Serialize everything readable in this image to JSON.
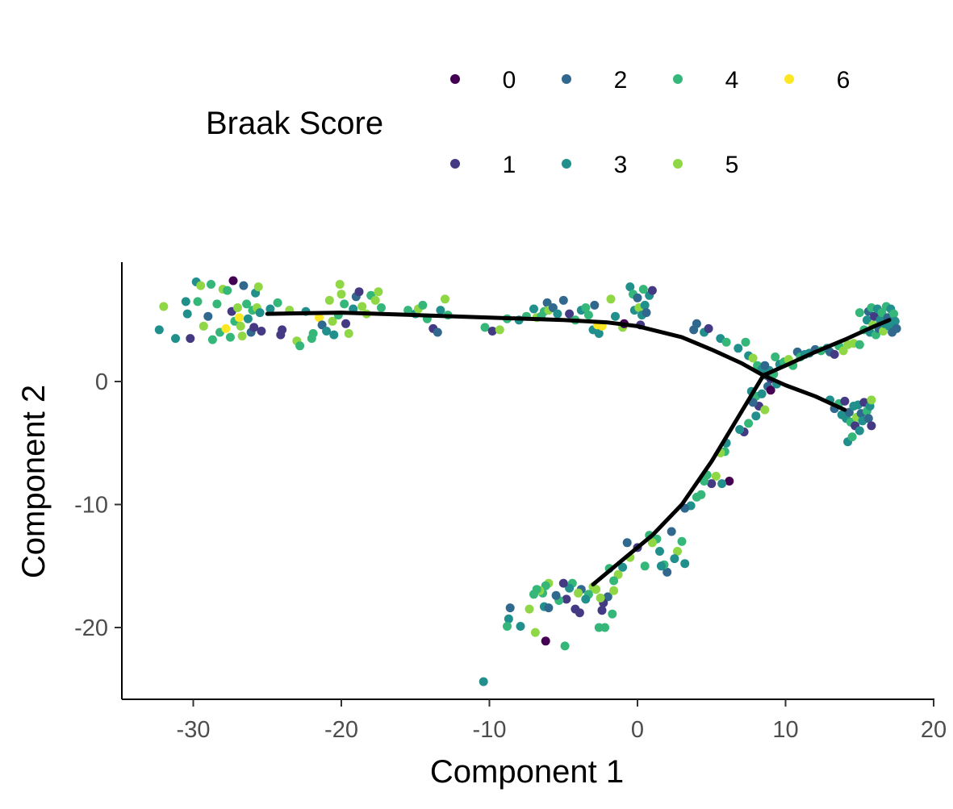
{
  "chart_data": {
    "type": "scatter",
    "title": "",
    "xlabel": "Component 1",
    "ylabel": "Component 2",
    "xlim": [
      -35,
      20
    ],
    "ylim": [
      -26,
      9.5
    ],
    "xticks": [
      "-30",
      "-20",
      "-10",
      "0",
      "10",
      "20"
    ],
    "yticks": [
      "0",
      "-10",
      "-20"
    ],
    "grid": false,
    "legend": {
      "title": "Braak Score",
      "placement": "top",
      "entries": [
        {
          "label": "0",
          "color": "#440154"
        },
        {
          "label": "1",
          "color": "#443A83"
        },
        {
          "label": "2",
          "color": "#31688E"
        },
        {
          "label": "3",
          "color": "#21908D"
        },
        {
          "label": "4",
          "color": "#35B779"
        },
        {
          "label": "5",
          "color": "#8FD744"
        },
        {
          "label": "6",
          "color": "#FDE725"
        }
      ]
    },
    "trajectory": [
      {
        "name": "main-branch",
        "points": [
          [
            -25,
            5.5
          ],
          [
            -20,
            5.6
          ],
          [
            -15,
            5.4
          ],
          [
            -10,
            5.2
          ],
          [
            -5,
            5.0
          ],
          [
            -2,
            4.8
          ],
          [
            0,
            4.5
          ],
          [
            3,
            3.6
          ],
          [
            5,
            2.6
          ],
          [
            7,
            1.5
          ],
          [
            8.5,
            0.5
          ],
          [
            10,
            -0.3
          ],
          [
            12,
            -1.2
          ],
          [
            14,
            -2.3
          ]
        ]
      },
      {
        "name": "upper-right-branch",
        "points": [
          [
            8.5,
            0.5
          ],
          [
            10,
            1.3
          ],
          [
            12,
            2.4
          ],
          [
            14,
            3.4
          ],
          [
            16,
            4.5
          ],
          [
            17,
            5.0
          ]
        ]
      },
      {
        "name": "lower-branch",
        "points": [
          [
            8.5,
            0.5
          ],
          [
            7.5,
            -1.5
          ],
          [
            6.5,
            -3.5
          ],
          [
            5,
            -6.5
          ],
          [
            3,
            -10
          ],
          [
            1,
            -12.5
          ],
          [
            -1,
            -14.5
          ],
          [
            -3,
            -16.5
          ]
        ]
      }
    ],
    "points": [
      [
        -32.3,
        4.2,
        3
      ],
      [
        -32,
        6.1,
        5
      ],
      [
        -31.2,
        3.5,
        3
      ],
      [
        -30.5,
        6.5,
        3
      ],
      [
        -30.2,
        3.5,
        1
      ],
      [
        -30.4,
        5.5,
        3
      ],
      [
        -29.8,
        8.1,
        3
      ],
      [
        -29.5,
        7.8,
        5
      ],
      [
        -29.7,
        6.5,
        4
      ],
      [
        -29.3,
        4.5,
        5
      ],
      [
        -29,
        5.3,
        2
      ],
      [
        -28.8,
        7.9,
        4
      ],
      [
        -28.7,
        3.4,
        4
      ],
      [
        -28.4,
        6.3,
        4
      ],
      [
        -28.2,
        4.0,
        4
      ],
      [
        -28,
        7.5,
        5
      ],
      [
        -27.8,
        4.3,
        6
      ],
      [
        -27.7,
        7.4,
        4
      ],
      [
        -27.5,
        3.6,
        4
      ],
      [
        -27.4,
        5.7,
        1
      ],
      [
        -27.2,
        4.9,
        4
      ],
      [
        -27.3,
        8.2,
        0
      ],
      [
        -27,
        6.0,
        5
      ],
      [
        -26.9,
        5.2,
        6
      ],
      [
        -26.8,
        4.5,
        5
      ],
      [
        -26.7,
        3.7,
        5
      ],
      [
        -26.6,
        7.8,
        2
      ],
      [
        -26.4,
        6.3,
        4
      ],
      [
        -26.3,
        5.1,
        3
      ],
      [
        -26.1,
        4.0,
        2
      ],
      [
        -26,
        5.8,
        4
      ],
      [
        -25.8,
        7.2,
        3
      ],
      [
        -25.9,
        4.4,
        1
      ],
      [
        -25.7,
        6.0,
        5
      ],
      [
        -25.6,
        7.7,
        5
      ],
      [
        -25.5,
        5.6,
        3
      ],
      [
        -25.4,
        4.1,
        1
      ],
      [
        -24.8,
        5.9,
        3
      ],
      [
        -24.3,
        6.4,
        4
      ],
      [
        -24.1,
        3.8,
        1
      ],
      [
        -24.0,
        4.2,
        1
      ],
      [
        -23.5,
        5.8,
        5
      ],
      [
        -23,
        3.3,
        5
      ],
      [
        -22.8,
        2.9,
        4
      ],
      [
        -22.4,
        5.7,
        3
      ],
      [
        -22.0,
        3.5,
        4
      ],
      [
        -21.9,
        3.9,
        4
      ],
      [
        -21.5,
        5.2,
        6
      ],
      [
        -21.3,
        4.6,
        2
      ],
      [
        -21.0,
        4.1,
        3
      ],
      [
        -20.8,
        6.6,
        5
      ],
      [
        -20.6,
        4.9,
        5
      ],
      [
        -20.5,
        3.8,
        3
      ],
      [
        -20.2,
        5.4,
        4
      ],
      [
        -20.1,
        7.9,
        5
      ],
      [
        -20.0,
        7.1,
        5
      ],
      [
        -19.8,
        6.3,
        4
      ],
      [
        -19.7,
        4.7,
        1
      ],
      [
        -19.5,
        3.9,
        5
      ],
      [
        -19.2,
        5.9,
        3
      ],
      [
        -19.0,
        6.9,
        2
      ],
      [
        -18.8,
        7.3,
        1
      ],
      [
        -18.6,
        6.1,
        5
      ],
      [
        -18.3,
        5.5,
        5
      ],
      [
        -18.0,
        7.0,
        4
      ],
      [
        -17.7,
        6.6,
        5
      ],
      [
        -17.5,
        7.3,
        5
      ],
      [
        -17.3,
        6.0,
        4
      ],
      [
        -15.5,
        5.8,
        4
      ],
      [
        -15.0,
        5.5,
        3
      ],
      [
        -14.8,
        5.9,
        5
      ],
      [
        -14.5,
        6.2,
        4
      ],
      [
        -14.2,
        5.1,
        4
      ],
      [
        -13.8,
        4.3,
        1
      ],
      [
        -13.5,
        4.0,
        2
      ],
      [
        -13.3,
        5.8,
        3
      ],
      [
        -13.0,
        6.7,
        5
      ],
      [
        -12.8,
        5.4,
        4
      ],
      [
        -10.3,
        4.4,
        4
      ],
      [
        -9.8,
        4.1,
        1
      ],
      [
        -9.3,
        4.2,
        5
      ],
      [
        -8.8,
        5.1,
        4
      ],
      [
        -8.0,
        5.0,
        3
      ],
      [
        -7.5,
        5.3,
        4
      ],
      [
        -7.0,
        5.9,
        3
      ],
      [
        -6.8,
        5.2,
        5
      ],
      [
        -6.5,
        5.3,
        4
      ],
      [
        -6.3,
        5.7,
        4
      ],
      [
        -6.1,
        6.4,
        2
      ],
      [
        -6.0,
        5.8,
        5
      ],
      [
        -5.7,
        6.0,
        2
      ],
      [
        -5.4,
        5.5,
        3
      ],
      [
        -5.0,
        6.6,
        2
      ],
      [
        -4.6,
        5.5,
        1
      ],
      [
        -4.2,
        5.0,
        4
      ],
      [
        -3.8,
        5.8,
        3
      ],
      [
        -3.5,
        6.0,
        4
      ],
      [
        -3.3,
        5.4,
        4
      ],
      [
        -3.0,
        4.2,
        3
      ],
      [
        -2.9,
        6.2,
        2
      ],
      [
        -2.7,
        4.6,
        6
      ],
      [
        -2.6,
        3.9,
        3
      ],
      [
        -2.4,
        4.5,
        6
      ],
      [
        -1.8,
        6.7,
        5
      ],
      [
        -1.5,
        5.3,
        3
      ],
      [
        -1.0,
        4.4,
        5
      ],
      [
        -0.9,
        4.7,
        0
      ],
      [
        -0.5,
        7.7,
        3
      ],
      [
        -0.3,
        7.1,
        4
      ],
      [
        -0.2,
        5.8,
        3
      ],
      [
        0.0,
        6.8,
        2
      ],
      [
        0.1,
        6.0,
        5
      ],
      [
        0.2,
        4.6,
        1
      ],
      [
        0.3,
        5.4,
        3
      ],
      [
        0.4,
        7.5,
        4
      ],
      [
        0.5,
        6.2,
        3
      ],
      [
        0.6,
        5.6,
        2
      ],
      [
        0.8,
        7.0,
        3
      ],
      [
        1.0,
        7.4,
        1
      ],
      [
        3.8,
        4.2,
        2
      ],
      [
        4.0,
        4.7,
        2
      ],
      [
        4.5,
        4.0,
        3
      ],
      [
        4.8,
        4.3,
        1
      ],
      [
        5.6,
        3.5,
        3
      ],
      [
        6.0,
        3.2,
        4
      ],
      [
        6.8,
        2.7,
        3
      ],
      [
        7.3,
        3.2,
        4
      ],
      [
        7.5,
        2.1,
        3
      ],
      [
        7.8,
        1.9,
        5
      ],
      [
        8.1,
        1.3,
        4
      ],
      [
        8.4,
        1.0,
        3
      ],
      [
        8.7,
        0.5,
        2
      ],
      [
        9.0,
        0.2,
        1
      ],
      [
        9.3,
        2.0,
        4
      ],
      [
        9.6,
        1.4,
        3
      ],
      [
        9.9,
        1.6,
        4
      ],
      [
        10.2,
        1.8,
        5
      ],
      [
        10.5,
        1.3,
        4
      ],
      [
        10.8,
        2.4,
        2
      ],
      [
        11.0,
        2.0,
        4
      ],
      [
        11.3,
        2.2,
        3
      ],
      [
        11.6,
        2.3,
        3
      ],
      [
        12.0,
        2.6,
        2
      ],
      [
        12.4,
        2.5,
        4
      ],
      [
        12.8,
        2.7,
        3
      ],
      [
        13.0,
        2.4,
        2
      ],
      [
        13.3,
        2.2,
        1
      ],
      [
        13.6,
        2.9,
        4
      ],
      [
        13.9,
        2.5,
        5
      ],
      [
        14.2,
        3.0,
        5
      ],
      [
        14.6,
        3.1,
        5
      ],
      [
        15.0,
        3.0,
        4
      ],
      [
        15.0,
        5.6,
        4
      ],
      [
        15.3,
        4.2,
        4
      ],
      [
        15.5,
        5.0,
        3
      ],
      [
        15.6,
        5.7,
        2
      ],
      [
        15.7,
        4.0,
        3
      ],
      [
        15.8,
        6.0,
        4
      ],
      [
        15.9,
        4.6,
        5
      ],
      [
        16.0,
        5.3,
        1
      ],
      [
        16.1,
        3.8,
        4
      ],
      [
        16.2,
        5.9,
        3
      ],
      [
        16.3,
        4.3,
        2
      ],
      [
        16.4,
        5.0,
        3
      ],
      [
        16.5,
        5.6,
        4
      ],
      [
        16.6,
        4.1,
        5
      ],
      [
        16.7,
        4.7,
        3
      ],
      [
        16.8,
        6.1,
        4
      ],
      [
        16.9,
        5.2,
        2
      ],
      [
        17.0,
        4.5,
        3
      ],
      [
        17.1,
        5.9,
        3
      ],
      [
        17.2,
        4.0,
        2
      ],
      [
        17.3,
        5.5,
        4
      ],
      [
        17.4,
        4.9,
        3
      ],
      [
        17.5,
        4.3,
        2
      ],
      [
        13.0,
        -1.5,
        3
      ],
      [
        13.3,
        -2.2,
        2
      ],
      [
        13.6,
        -1.8,
        4
      ],
      [
        13.8,
        -2.7,
        3
      ],
      [
        14.0,
        -1.6,
        1
      ],
      [
        14.1,
        -3.0,
        3
      ],
      [
        14.2,
        -4.9,
        3
      ],
      [
        14.3,
        -2.5,
        2
      ],
      [
        14.4,
        -3.3,
        4
      ],
      [
        14.5,
        -4.5,
        4
      ],
      [
        14.6,
        -2.0,
        3
      ],
      [
        14.7,
        -3.6,
        1
      ],
      [
        14.8,
        -2.9,
        5
      ],
      [
        14.9,
        -1.9,
        3
      ],
      [
        15.0,
        -4.0,
        3
      ],
      [
        15.1,
        -2.6,
        2
      ],
      [
        15.2,
        -3.2,
        3
      ],
      [
        15.3,
        -1.7,
        1
      ],
      [
        15.5,
        -2.4,
        4
      ],
      [
        15.6,
        -3.0,
        2
      ],
      [
        15.7,
        -2.0,
        3
      ],
      [
        15.8,
        -3.6,
        1
      ],
      [
        15.8,
        -1.5,
        5
      ],
      [
        7.7,
        -0.8,
        3
      ],
      [
        8.0,
        -1.2,
        4
      ],
      [
        8.2,
        -2.0,
        1
      ],
      [
        8.4,
        -1.0,
        3
      ],
      [
        8.6,
        -2.3,
        5
      ],
      [
        8.8,
        -0.4,
        2
      ],
      [
        9.0,
        -0.7,
        0
      ],
      [
        8.9,
        0.9,
        3
      ],
      [
        8.6,
        1.3,
        2
      ],
      [
        9.2,
        0.6,
        4
      ],
      [
        9.4,
        -0.2,
        3
      ],
      [
        7.8,
        -1.7,
        2
      ],
      [
        8.0,
        -2.8,
        3
      ],
      [
        7.5,
        -3.4,
        4
      ],
      [
        7.2,
        -4.1,
        1
      ],
      [
        6.9,
        -3.9,
        3
      ],
      [
        6.0,
        -5.0,
        3
      ],
      [
        5.9,
        -5.7,
        4
      ],
      [
        5.6,
        -5.8,
        5
      ],
      [
        5.3,
        -7.7,
        5
      ],
      [
        5.0,
        -8.3,
        1
      ],
      [
        4.7,
        -7.6,
        4
      ],
      [
        4.5,
        -8.1,
        4
      ],
      [
        4.3,
        -9.2,
        4
      ],
      [
        4.0,
        -9.4,
        4
      ],
      [
        3.6,
        -10.1,
        3
      ],
      [
        3.2,
        -10.3,
        2
      ],
      [
        6.2,
        -8.1,
        0
      ],
      [
        5.7,
        -8.3,
        3
      ],
      [
        3.0,
        -13.0,
        4
      ],
      [
        2.7,
        -13.8,
        5
      ],
      [
        2.5,
        -14.4,
        3
      ],
      [
        2.3,
        -12.2,
        2
      ],
      [
        2.0,
        -15.5,
        2
      ],
      [
        1.8,
        -14.9,
        4
      ],
      [
        1.5,
        -13.8,
        3
      ],
      [
        1.3,
        -12.8,
        4
      ],
      [
        1.0,
        -13.1,
        5
      ],
      [
        0.8,
        -12.5,
        4
      ],
      [
        0.5,
        -15.0,
        4
      ],
      [
        0.0,
        -13.5,
        1
      ],
      [
        -0.5,
        -14.3,
        5
      ],
      [
        -0.7,
        -13.1,
        2
      ],
      [
        -1.0,
        -15.1,
        3
      ],
      [
        -1.3,
        -15.7,
        5
      ],
      [
        -1.6,
        -16.2,
        4
      ],
      [
        -2.0,
        -17.5,
        2
      ],
      [
        -2.3,
        -18.0,
        1
      ],
      [
        -2.5,
        -17.6,
        5
      ],
      [
        -2.8,
        -16.9,
        5
      ],
      [
        -3.0,
        -16.7,
        5
      ],
      [
        -3.3,
        -17.3,
        4
      ],
      [
        -3.5,
        -17.7,
        3
      ],
      [
        -3.8,
        -16.9,
        2
      ],
      [
        -4.0,
        -17.2,
        5
      ],
      [
        -4.2,
        -18.5,
        1
      ],
      [
        -4.4,
        -16.4,
        4
      ],
      [
        -4.6,
        -16.8,
        3
      ],
      [
        -4.8,
        -17.7,
        1
      ],
      [
        -5.0,
        -16.4,
        1
      ],
      [
        -5.3,
        -17.8,
        4
      ],
      [
        -5.5,
        -17.4,
        2
      ],
      [
        -6.0,
        -16.4,
        5
      ],
      [
        -6.2,
        -16.6,
        4
      ],
      [
        -6.4,
        -17.2,
        4
      ],
      [
        -6.6,
        -17.0,
        5
      ],
      [
        -6.8,
        -16.9,
        4
      ],
      [
        -7.0,
        -17.3,
        4
      ],
      [
        -6.3,
        -18.3,
        3
      ],
      [
        -6.0,
        -18.4,
        2
      ],
      [
        -7.3,
        -18.5,
        5
      ],
      [
        -8.6,
        -18.4,
        2
      ],
      [
        -8.7,
        -19.3,
        3
      ],
      [
        -8.8,
        -19.9,
        4
      ],
      [
        -7.9,
        -19.9,
        3
      ],
      [
        -6.9,
        -20.4,
        5
      ],
      [
        -6.2,
        -21.1,
        0
      ],
      [
        -4.9,
        -21.5,
        4
      ],
      [
        -2.6,
        -20.0,
        4
      ],
      [
        -2.2,
        -20.0,
        4
      ],
      [
        -1.7,
        -18.9,
        4
      ],
      [
        -2.4,
        -18.6,
        1
      ],
      [
        -3.9,
        -18.8,
        1
      ],
      [
        -10.4,
        -24.4,
        3
      ],
      [
        -1.6,
        -17.0,
        5
      ],
      [
        -1.9,
        -15.2,
        4
      ],
      [
        1.6,
        -15.0,
        3
      ],
      [
        3.2,
        -14.8,
        3
      ]
    ]
  }
}
